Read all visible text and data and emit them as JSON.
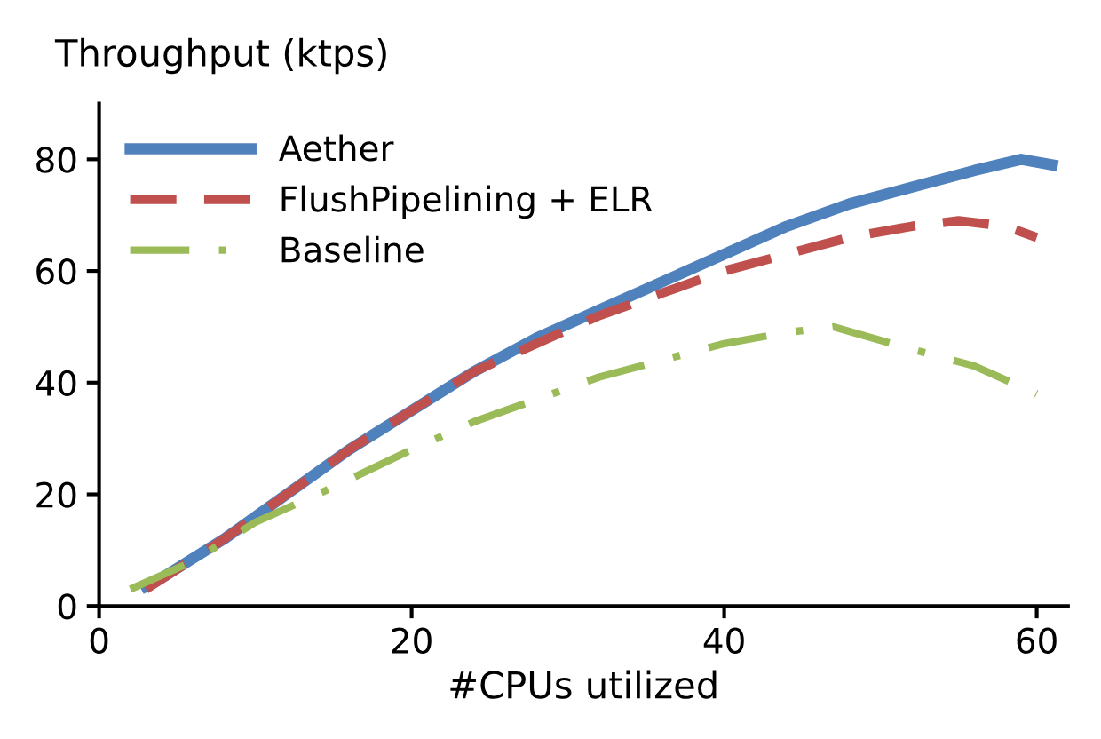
{
  "chart_data": {
    "type": "line",
    "ylabel": "Throughput (ktps)",
    "xlabel": "#CPUs utilized",
    "xlim": [
      0,
      62
    ],
    "ylim": [
      0,
      90
    ],
    "xticks": [
      0,
      20,
      40,
      60
    ],
    "yticks": [
      0,
      20,
      40,
      60,
      80
    ],
    "grid": false,
    "legend": "top left",
    "series": [
      {
        "name": "Aether",
        "color": "#4f81bd",
        "line_style": "solid",
        "x": [
          3,
          4,
          8,
          12,
          16,
          20,
          24,
          28,
          32,
          36,
          40,
          44,
          48,
          52,
          56,
          59,
          61
        ],
        "values": [
          3.5,
          5,
          12,
          20,
          28,
          35,
          42,
          48,
          53,
          58,
          63,
          68,
          72,
          75,
          78,
          80,
          79
        ]
      },
      {
        "name": "FlushPipelining + ELR",
        "color": "#c0504d",
        "line_style": "dashed",
        "x": [
          3,
          8,
          12,
          16,
          20,
          24,
          28,
          32,
          36,
          40,
          44,
          48,
          52,
          55,
          58,
          60
        ],
        "values": [
          3,
          12,
          20,
          28,
          35,
          42,
          47,
          52,
          56,
          60,
          63,
          66,
          68,
          69,
          68,
          66
        ]
      },
      {
        "name": "Baseline",
        "color": "#9bbb59",
        "line_style": "dashdot",
        "x": [
          2,
          6,
          10,
          14,
          20,
          24,
          28,
          32,
          36,
          40,
          44,
          47,
          52,
          56,
          60
        ],
        "values": [
          3,
          8,
          15,
          20,
          28,
          33,
          37,
          41,
          44,
          47,
          49,
          50,
          46,
          43,
          38
        ]
      }
    ]
  }
}
